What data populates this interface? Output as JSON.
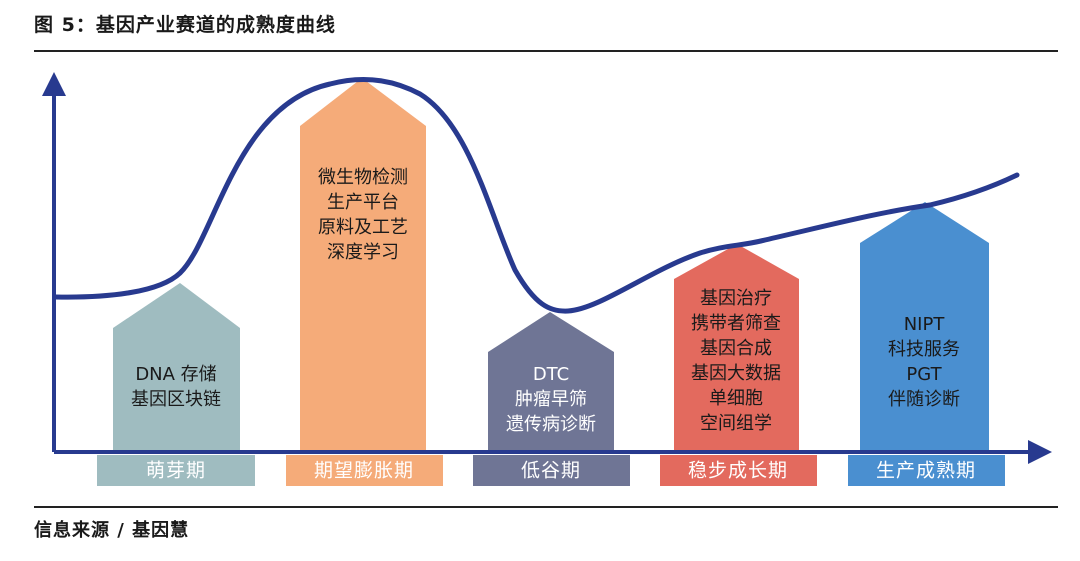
{
  "title": "图 5：基因产业赛道的成熟度曲线",
  "source": "信息来源 / 基因慧",
  "colors": {
    "curve": "#283a8f",
    "stage1": "#9fbcc0",
    "stage2": "#f5ab79",
    "stage3": "#6f7595",
    "stage4": "#e36a5e",
    "stage5": "#4a8fd0"
  },
  "stages": [
    {
      "label": "萌芽期",
      "items": [
        "DNA 存储",
        "基因区块链"
      ]
    },
    {
      "label": "期望膨胀期",
      "items": [
        "微生物检测",
        "生产平台",
        "原料及工艺",
        "深度学习"
      ]
    },
    {
      "label": "低谷期",
      "items": [
        "DTC",
        "肿瘤早筛",
        "遗传病诊断"
      ]
    },
    {
      "label": "稳步成长期",
      "items": [
        "基因治疗",
        "携带者筛查",
        "基因合成",
        "基因大数据",
        "单细胞",
        "空间组学"
      ]
    },
    {
      "label": "生产成熟期",
      "items": [
        "NIPT",
        "科技服务",
        "PGT",
        "伴随诊断"
      ]
    }
  ]
}
